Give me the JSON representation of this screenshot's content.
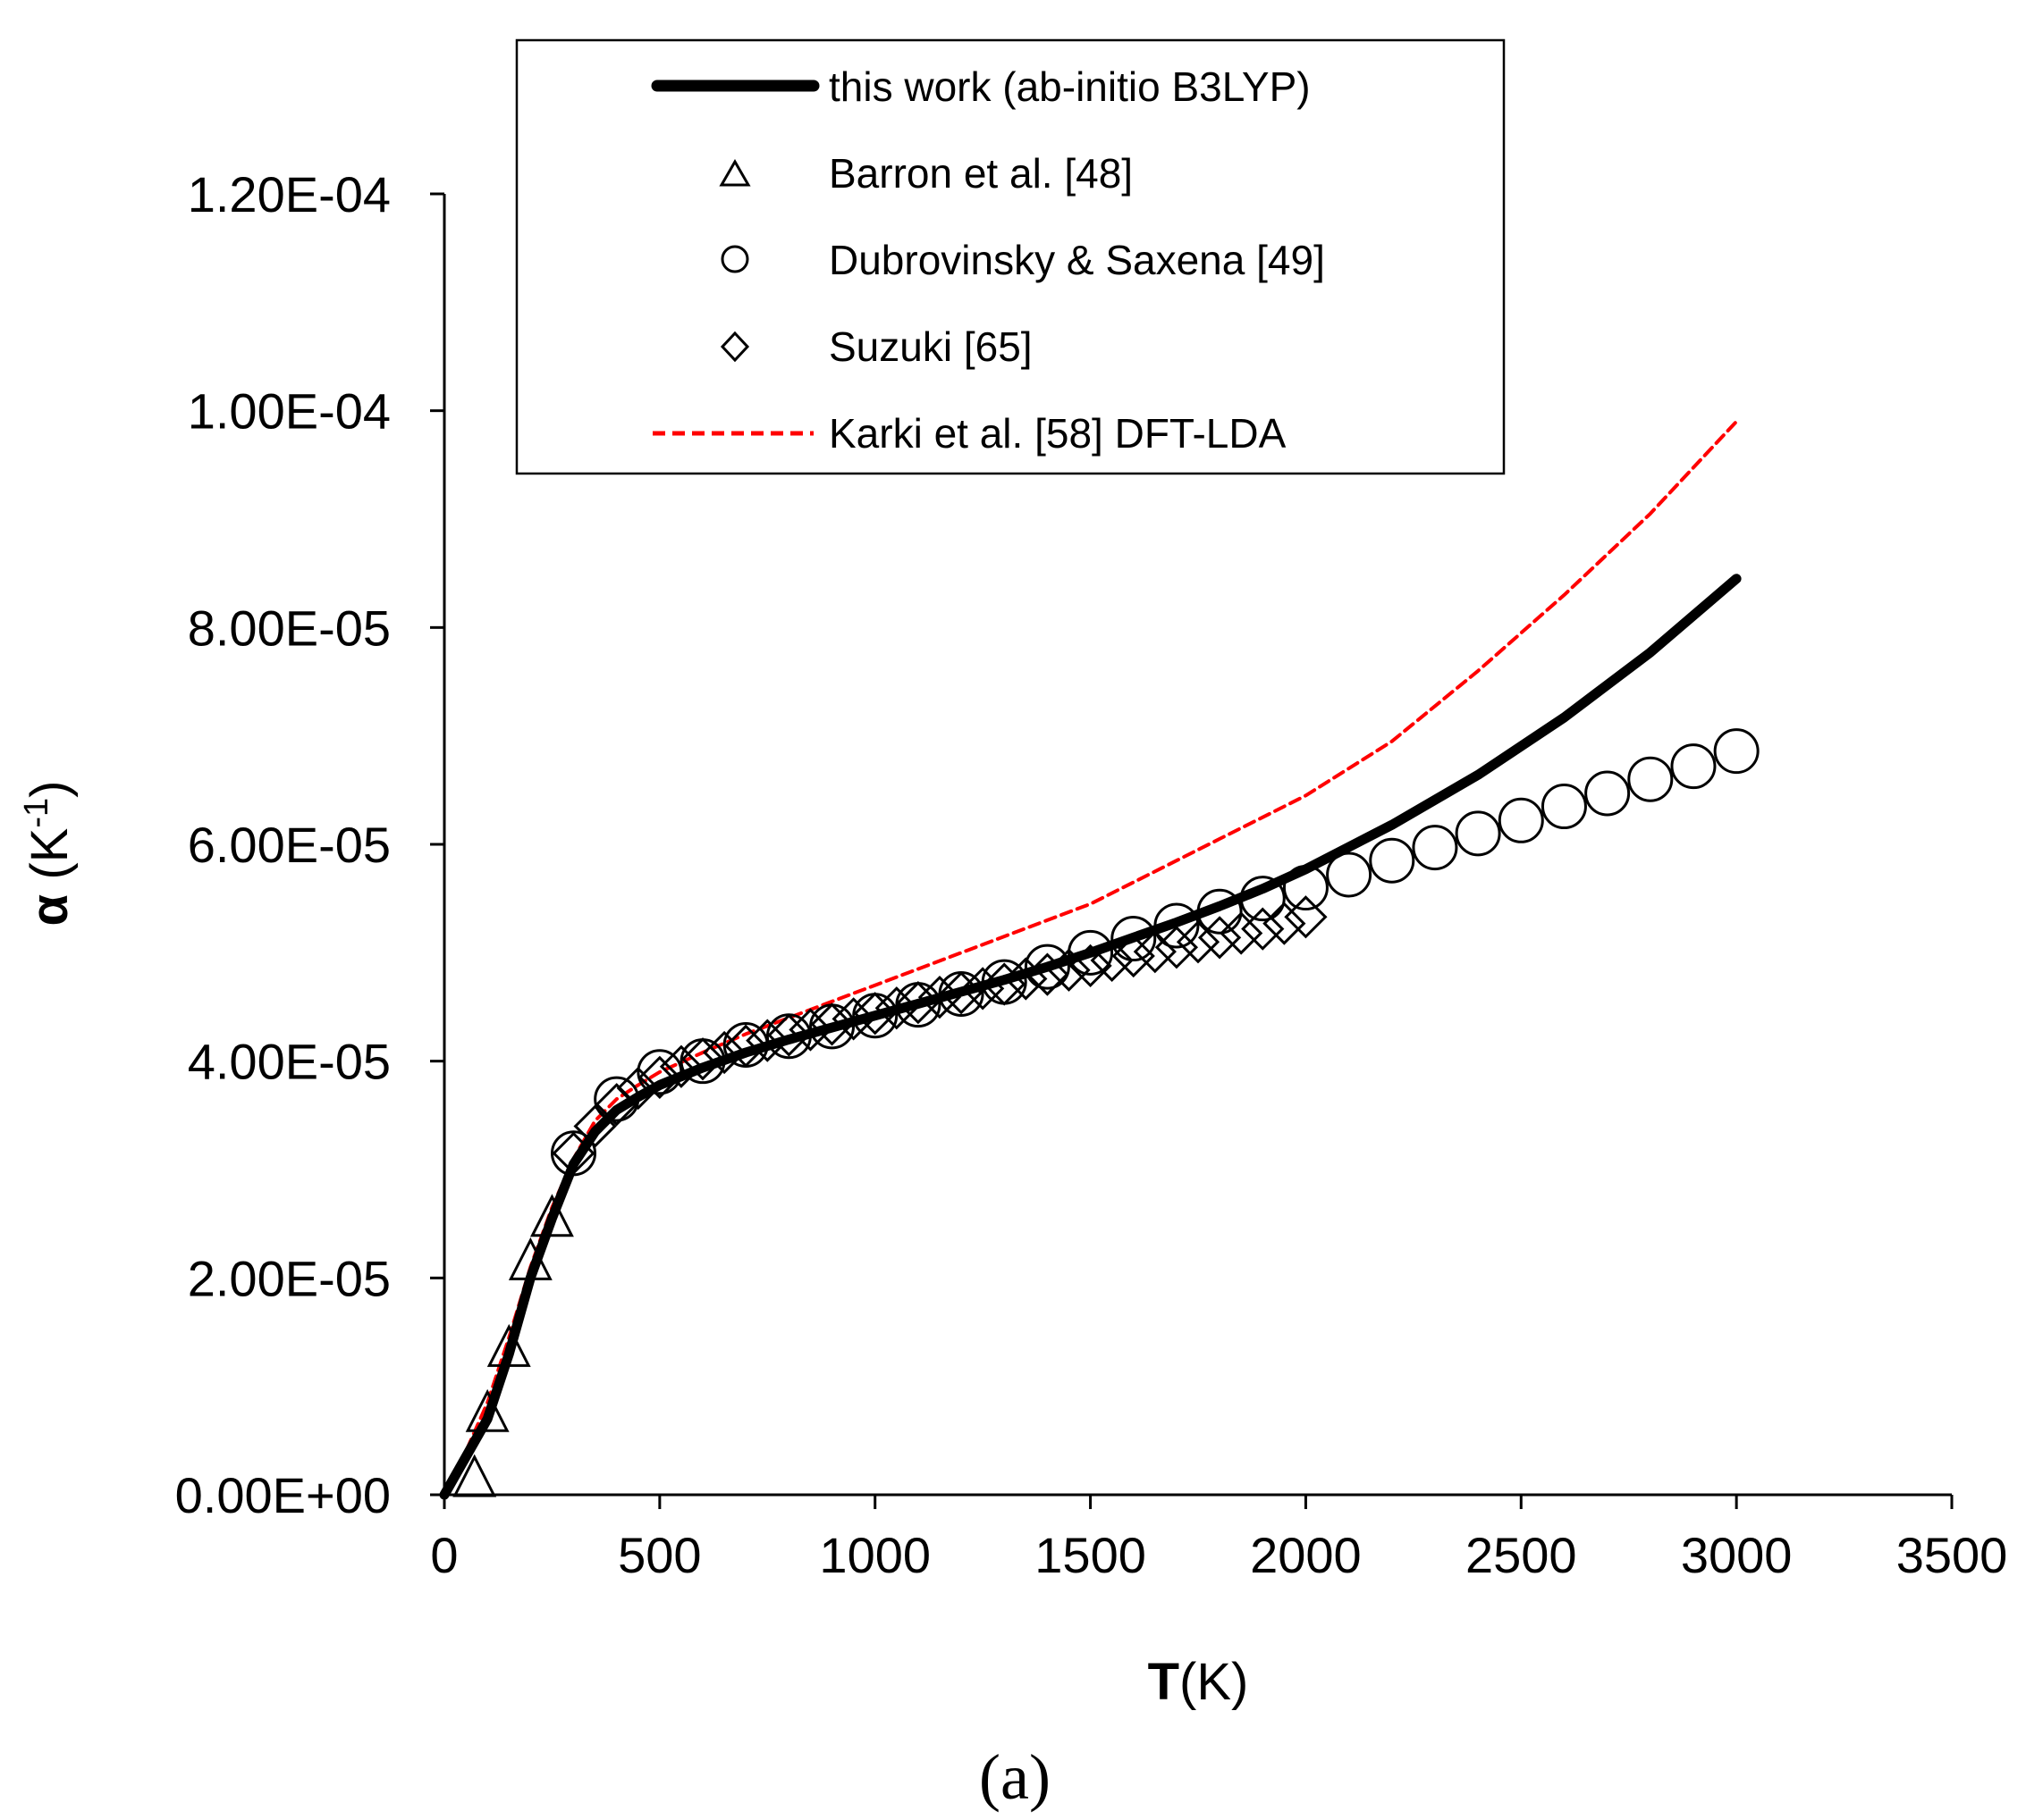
{
  "chart_data": {
    "type": "line",
    "title": "",
    "xlabel": {
      "bold": "T",
      "rest": "(K)"
    },
    "ylabel": {
      "symbol": "α",
      "unit_open": " (K",
      "unit_sup": "-1",
      "unit_close": ")"
    },
    "xlim": [
      0,
      3500
    ],
    "ylim": [
      0,
      0.00012
    ],
    "xticks": [
      "0",
      "500",
      "1000",
      "1500",
      "2000",
      "2500",
      "3000",
      "3500"
    ],
    "yticks": [
      "0.00E+00",
      "2.00E-05",
      "4.00E-05",
      "6.00E-05",
      "8.00E-05",
      "1.00E-04",
      "1.20E-04"
    ],
    "grid": false,
    "legend_position": "top-center",
    "caption": "(a)",
    "series": [
      {
        "name": "this work (ab-initio B3LYP)",
        "style": "solid-thick",
        "color": "#000000",
        "x": [
          0,
          50,
          100,
          150,
          200,
          250,
          300,
          350,
          400,
          450,
          500,
          600,
          700,
          800,
          900,
          1000,
          1100,
          1200,
          1300,
          1400,
          1500,
          1600,
          1700,
          1800,
          1900,
          2000,
          2200,
          2400,
          2600,
          2800,
          3000
        ],
        "y": [
          0,
          3.5e-06,
          7e-06,
          1.3e-05,
          2e-05,
          2.55e-05,
          3.05e-05,
          3.35e-05,
          3.55e-05,
          3.67e-05,
          3.78e-05,
          3.94e-05,
          4.08e-05,
          4.2e-05,
          4.31e-05,
          4.42e-05,
          4.53e-05,
          4.64e-05,
          4.75e-05,
          4.87e-05,
          5e-05,
          5.14e-05,
          5.28e-05,
          5.43e-05,
          5.59e-05,
          5.77e-05,
          6.18e-05,
          6.64e-05,
          7.17e-05,
          7.77e-05,
          8.45e-05
        ]
      },
      {
        "name": "Barron et al. [48]",
        "style": "triangle",
        "color": "#000000",
        "x": [
          70,
          100,
          150,
          200,
          250
        ],
        "y": [
          1.5e-06,
          7.5e-06,
          1.35e-05,
          2.15e-05,
          2.55e-05
        ]
      },
      {
        "name": "Dubrovinsky & Saxena [49]",
        "style": "circle",
        "color": "#000000",
        "x": [
          300,
          400,
          500,
          600,
          700,
          800,
          900,
          1000,
          1100,
          1200,
          1300,
          1400,
          1500,
          1600,
          1700,
          1800,
          1900,
          2000,
          2100,
          2200,
          2300,
          2400,
          2500,
          2600,
          2700,
          2800,
          2900,
          3000
        ],
        "y": [
          3.15e-05,
          3.65e-05,
          3.9e-05,
          4e-05,
          4.15e-05,
          4.23e-05,
          4.32e-05,
          4.42e-05,
          4.52e-05,
          4.62e-05,
          4.73e-05,
          4.87e-05,
          5e-05,
          5.13e-05,
          5.25e-05,
          5.38e-05,
          5.5e-05,
          5.6e-05,
          5.72e-05,
          5.85e-05,
          5.97e-05,
          6.1e-05,
          6.22e-05,
          6.35e-05,
          6.47e-05,
          6.6e-05,
          6.72e-05,
          6.86e-05
        ]
      },
      {
        "name": "Suzuki [65]",
        "style": "diamond",
        "color": "#000000",
        "x": [
          300,
          350,
          400,
          450,
          500,
          550,
          600,
          650,
          700,
          750,
          800,
          850,
          900,
          950,
          1000,
          1050,
          1100,
          1150,
          1200,
          1250,
          1300,
          1350,
          1400,
          1450,
          1500,
          1550,
          1600,
          1650,
          1700,
          1750,
          1800,
          1850,
          1900,
          1950,
          2000
        ],
        "y": [
          3.15e-05,
          3.4e-05,
          3.6e-05,
          3.75e-05,
          3.85e-05,
          3.95e-05,
          4.02e-05,
          4.08e-05,
          4.14e-05,
          4.19e-05,
          4.24e-05,
          4.29e-05,
          4.34e-05,
          4.39e-05,
          4.44e-05,
          4.49e-05,
          4.54e-05,
          4.59e-05,
          4.63e-05,
          4.67e-05,
          4.71e-05,
          4.76e-05,
          4.8e-05,
          4.84e-05,
          4.88e-05,
          4.93e-05,
          4.97e-05,
          5.01e-05,
          5.05e-05,
          5.1e-05,
          5.14e-05,
          5.18e-05,
          5.22e-05,
          5.27e-05,
          5.33e-05
        ]
      },
      {
        "name": "Karki et al. [58] DFT-LDA",
        "style": "dashed",
        "color": "#ff0000",
        "x": [
          0,
          50,
          100,
          150,
          200,
          250,
          300,
          350,
          400,
          450,
          500,
          600,
          700,
          800,
          900,
          1000,
          1100,
          1200,
          1300,
          1400,
          1500,
          1600,
          1700,
          1800,
          1900,
          2000,
          2200,
          2400,
          2600,
          2800,
          3000
        ],
        "y": [
          0,
          4e-06,
          8.5e-06,
          1.45e-05,
          2.1e-05,
          2.65e-05,
          3.1e-05,
          3.45e-05,
          3.65e-05,
          3.78e-05,
          3.9e-05,
          4.08e-05,
          4.25e-05,
          4.4e-05,
          4.55e-05,
          4.7e-05,
          4.85e-05,
          5e-05,
          5.15e-05,
          5.3e-05,
          5.45e-05,
          5.65e-05,
          5.85e-05,
          6.05e-05,
          6.25e-05,
          6.45e-05,
          6.95e-05,
          7.6e-05,
          8.3e-05,
          9.05e-05,
          9.9e-05
        ]
      }
    ]
  }
}
